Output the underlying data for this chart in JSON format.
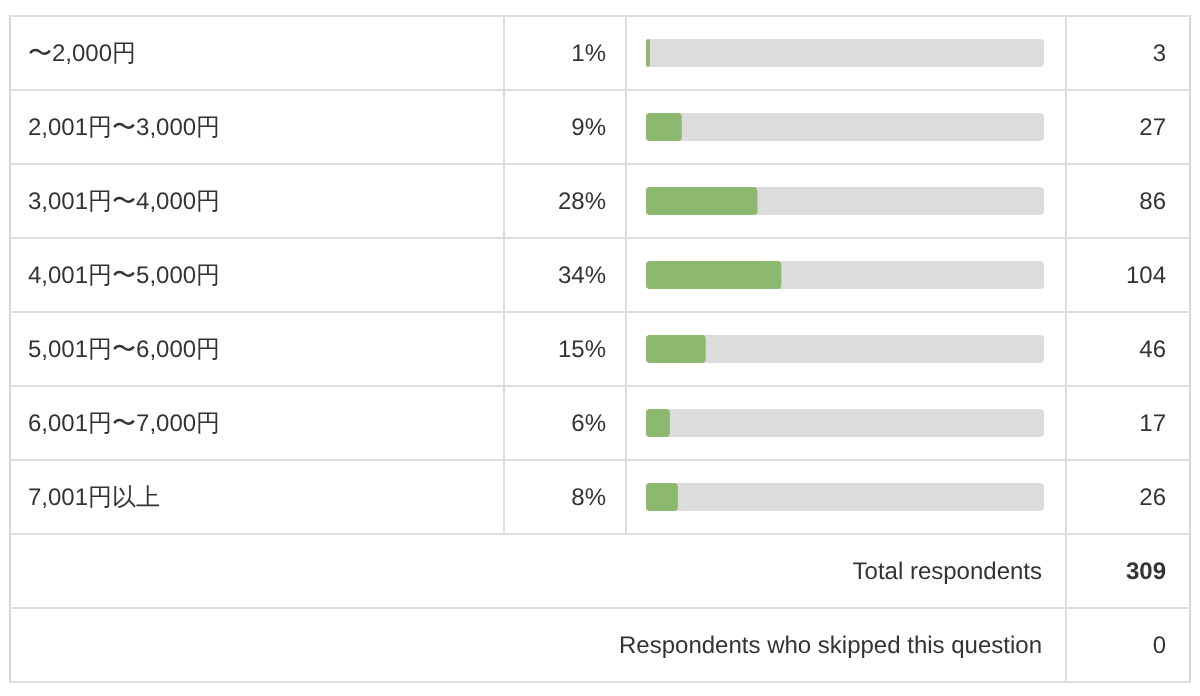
{
  "chart_data": {
    "type": "bar",
    "orientation": "horizontal",
    "categories": [
      "〜2,000円",
      "2,001円〜3,000円",
      "3,001円〜4,000円",
      "4,001円〜5,000円",
      "5,001円〜6,000円",
      "6,001円〜7,000円",
      "7,001円以上"
    ],
    "values": [
      1,
      9,
      28,
      34,
      15,
      6,
      8
    ],
    "value_labels": [
      "1%",
      "9%",
      "28%",
      "34%",
      "15%",
      "6%",
      "8%"
    ],
    "color": "#8db870",
    "xlim": [
      0,
      100
    ],
    "annotations": [
      "3",
      "27",
      "86",
      "104",
      "46",
      "17",
      "26",
      "Total respondents",
      "309",
      "Respondents who skipped this question",
      "0"
    ]
  }
}
